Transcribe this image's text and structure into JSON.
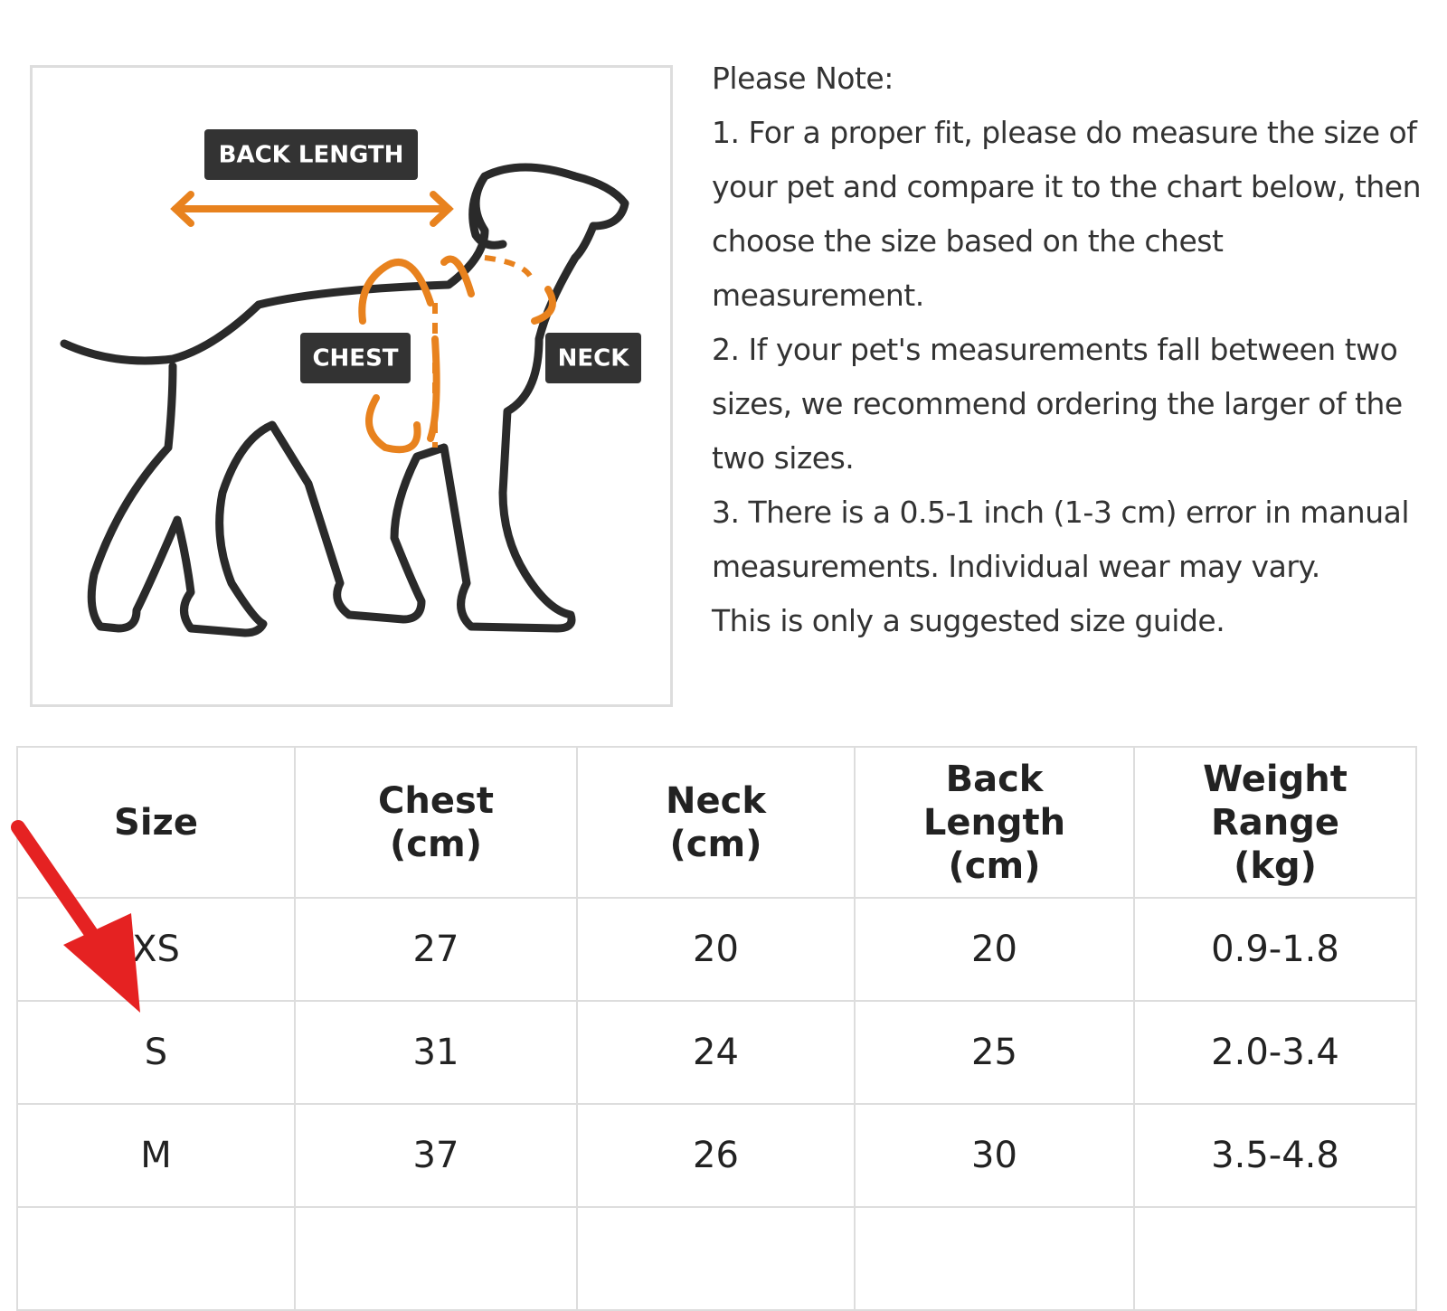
{
  "diagram": {
    "labels": {
      "back_length": "BACK LENGTH",
      "chest": "CHEST",
      "neck": "NECK"
    }
  },
  "note": {
    "title": "Please Note:",
    "items": [
      "1. For a proper fit, please do measure the size of your pet and compare it to the chart below, then choose the size based on the chest measurement.",
      "2. If your pet's measurements fall between two sizes, we recommend ordering the larger of the two sizes.",
      "3. There is a 0.5-1 inch (1-3 cm) error in manual measurements. Individual wear may vary.",
      "This is only a suggested size guide."
    ]
  },
  "table": {
    "header": [
      [
        "Size"
      ],
      [
        "Chest",
        "(cm)"
      ],
      [
        "Neck",
        "(cm)"
      ],
      [
        "Back",
        "Length",
        "(cm)"
      ],
      [
        "Weight",
        "Range",
        "(kg)"
      ]
    ],
    "rows": [
      [
        "XS",
        27,
        20,
        20,
        "0.9-1.8"
      ],
      [
        "S",
        31,
        24,
        25,
        "2.0-3.4"
      ],
      [
        "M",
        37,
        26,
        30,
        "3.5-4.8"
      ]
    ]
  }
}
